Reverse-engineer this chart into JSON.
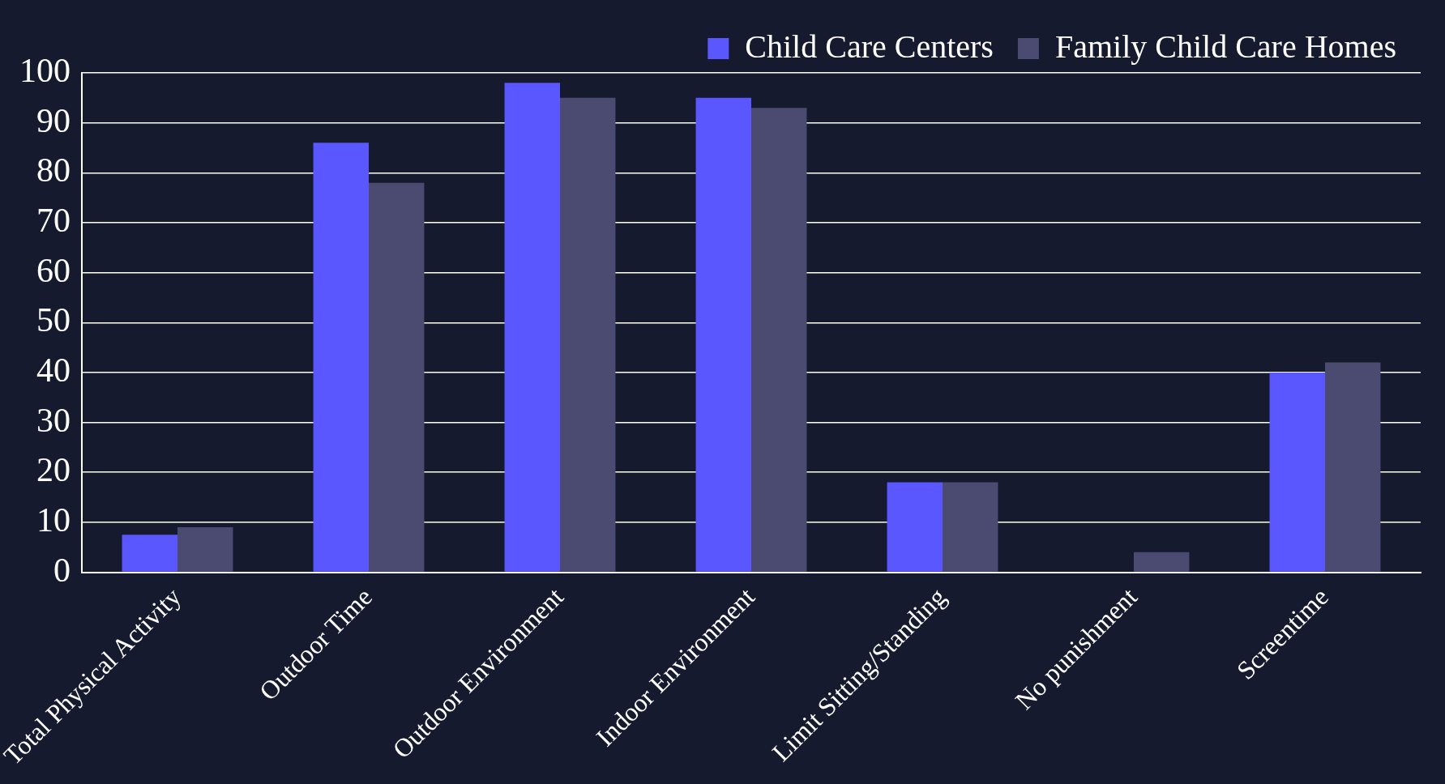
{
  "chart_data": {
    "type": "bar",
    "categories": [
      "Total Physical Activity",
      "Outdoor Time",
      "Outdoor Environment",
      "Indoor Environment",
      "Limit Sitting/Standing",
      "No punishment",
      "Screentime"
    ],
    "series": [
      {
        "name": "Child Care Centers",
        "color": "#5a57ff",
        "values": [
          7.5,
          86,
          98,
          95,
          18,
          0,
          40
        ]
      },
      {
        "name": "Family Child Care Homes",
        "color": "#4b4b72",
        "values": [
          9,
          78,
          95,
          93,
          18,
          4,
          42
        ]
      }
    ],
    "ylim": [
      0,
      100
    ],
    "yticks": [
      0,
      10,
      20,
      30,
      40,
      50,
      60,
      70,
      80,
      90,
      100
    ],
    "grid": "y",
    "legend": "top right"
  }
}
